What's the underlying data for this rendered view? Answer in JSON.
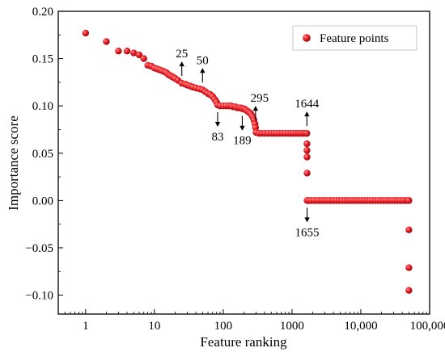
{
  "chart_data": {
    "type": "scatter",
    "x_scale": "log",
    "xlabel": "Feature ranking",
    "ylabel": "Importance score",
    "xlim": [
      0.4,
      100000
    ],
    "ylim": [
      -0.12,
      0.2
    ],
    "x_ticks": [
      {
        "value": 1,
        "label": "1"
      },
      {
        "value": 10,
        "label": "10"
      },
      {
        "value": 100,
        "label": "100"
      },
      {
        "value": 1000,
        "label": "1000"
      },
      {
        "value": 10000,
        "label": "10,000"
      },
      {
        "value": 100000,
        "label": "100,000"
      }
    ],
    "y_ticks": [
      {
        "value": -0.1,
        "label": "−0.10"
      },
      {
        "value": -0.05,
        "label": "−0.05"
      },
      {
        "value": 0.0,
        "label": "0.00"
      },
      {
        "value": 0.05,
        "label": "0.05"
      },
      {
        "value": 0.1,
        "label": "0.10"
      },
      {
        "value": 0.15,
        "label": "0.15"
      },
      {
        "value": 0.2,
        "label": "0.20"
      }
    ],
    "grid": false,
    "legend": {
      "position": "top-right",
      "entries": [
        "Feature points"
      ]
    },
    "series": [
      {
        "name": "Feature points",
        "color": "#e8141b",
        "points": [
          [
            1,
            0.177
          ],
          [
            2,
            0.168
          ],
          [
            3,
            0.158
          ],
          [
            4,
            0.158
          ],
          [
            5,
            0.156
          ],
          [
            6,
            0.154
          ],
          [
            7,
            0.15
          ],
          [
            8,
            0.143
          ],
          [
            9,
            0.142
          ],
          [
            10,
            0.14
          ],
          [
            11,
            0.139
          ],
          [
            12,
            0.138
          ],
          [
            13,
            0.137
          ],
          [
            14,
            0.136
          ],
          [
            15,
            0.135
          ],
          [
            16,
            0.133
          ],
          [
            17,
            0.132
          ],
          [
            18,
            0.131
          ],
          [
            19,
            0.13
          ],
          [
            20,
            0.129
          ],
          [
            22,
            0.127
          ],
          [
            25,
            0.124
          ],
          [
            28,
            0.123
          ],
          [
            30,
            0.122
          ],
          [
            33,
            0.121
          ],
          [
            36,
            0.12
          ],
          [
            40,
            0.119
          ],
          [
            45,
            0.118
          ],
          [
            50,
            0.117
          ],
          [
            55,
            0.115
          ],
          [
            60,
            0.113
          ],
          [
            65,
            0.112
          ],
          [
            70,
            0.11
          ],
          [
            75,
            0.107
          ],
          [
            80,
            0.104
          ],
          [
            83,
            0.101
          ],
          [
            90,
            0.1
          ],
          [
            100,
            0.1
          ],
          [
            110,
            0.1
          ],
          [
            120,
            0.1
          ],
          [
            130,
            0.1
          ],
          [
            140,
            0.099
          ],
          [
            150,
            0.099
          ],
          [
            160,
            0.098
          ],
          [
            170,
            0.098
          ],
          [
            180,
            0.098
          ],
          [
            189,
            0.097
          ],
          [
            200,
            0.097
          ],
          [
            210,
            0.096
          ],
          [
            220,
            0.095
          ],
          [
            230,
            0.094
          ],
          [
            240,
            0.093
          ],
          [
            250,
            0.092
          ],
          [
            260,
            0.09
          ],
          [
            270,
            0.088
          ],
          [
            280,
            0.085
          ],
          [
            290,
            0.081
          ],
          [
            295,
            0.077
          ],
          [
            300,
            0.072
          ],
          [
            330,
            0.071
          ],
          [
            360,
            0.071
          ],
          [
            400,
            0.071
          ],
          [
            450,
            0.071
          ],
          [
            500,
            0.071
          ],
          [
            550,
            0.071
          ],
          [
            600,
            0.071
          ],
          [
            660,
            0.071
          ],
          [
            720,
            0.071
          ],
          [
            800,
            0.071
          ],
          [
            880,
            0.071
          ],
          [
            960,
            0.071
          ],
          [
            1050,
            0.071
          ],
          [
            1150,
            0.071
          ],
          [
            1250,
            0.071
          ],
          [
            1350,
            0.071
          ],
          [
            1450,
            0.071
          ],
          [
            1550,
            0.071
          ],
          [
            1644,
            0.071
          ],
          [
            1648,
            0.06
          ],
          [
            1650,
            0.053
          ],
          [
            1652,
            0.046
          ],
          [
            1654,
            0.029
          ],
          [
            1655,
            0
          ],
          [
            1750,
            0
          ],
          [
            1900,
            0
          ],
          [
            2100,
            0
          ],
          [
            2300,
            0
          ],
          [
            2500,
            0
          ],
          [
            2750,
            0
          ],
          [
            3000,
            0
          ],
          [
            3300,
            0
          ],
          [
            3600,
            0
          ],
          [
            4000,
            0
          ],
          [
            4400,
            0
          ],
          [
            4800,
            0
          ],
          [
            5300,
            0
          ],
          [
            5800,
            0
          ],
          [
            6400,
            0
          ],
          [
            7000,
            0
          ],
          [
            7700,
            0
          ],
          [
            8500,
            0
          ],
          [
            9300,
            0
          ],
          [
            10200,
            0
          ],
          [
            11200,
            0
          ],
          [
            12300,
            0
          ],
          [
            13500,
            0
          ],
          [
            14800,
            0
          ],
          [
            16200,
            0
          ],
          [
            17800,
            0
          ],
          [
            19500,
            0
          ],
          [
            21400,
            0
          ],
          [
            23500,
            0
          ],
          [
            25800,
            0
          ],
          [
            28300,
            0
          ],
          [
            31000,
            0
          ],
          [
            34000,
            0
          ],
          [
            37300,
            0
          ],
          [
            40900,
            0
          ],
          [
            44800,
            0
          ],
          [
            48000,
            0
          ],
          [
            50000,
            0
          ],
          [
            50000,
            -0.031
          ],
          [
            50000,
            -0.071
          ],
          [
            50000,
            -0.095
          ]
        ]
      }
    ],
    "annotations": [
      {
        "label": "25",
        "x": 25,
        "y": 0.124,
        "direction": "up"
      },
      {
        "label": "50",
        "x": 50,
        "y": 0.117,
        "direction": "up"
      },
      {
        "label": "83",
        "x": 83,
        "y": 0.101,
        "direction": "down"
      },
      {
        "label": "189",
        "x": 189,
        "y": 0.097,
        "direction": "down"
      },
      {
        "label": "295",
        "x": 295,
        "y": 0.077,
        "direction": "up"
      },
      {
        "label": "1644",
        "x": 1644,
        "y": 0.071,
        "direction": "up"
      },
      {
        "label": "1655",
        "x": 1655,
        "y": 0,
        "direction": "down"
      }
    ]
  }
}
